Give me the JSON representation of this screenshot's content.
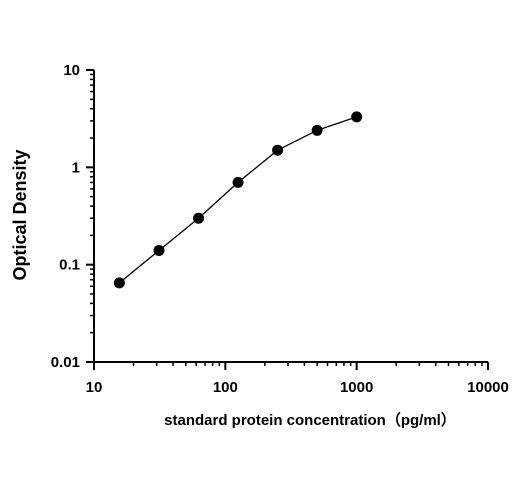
{
  "chart_data": {
    "type": "scatter",
    "title": "",
    "xlabel": "standard protein concentration（pg/ml）",
    "ylabel": "Optical Density",
    "xscale": "log",
    "yscale": "log",
    "xlim": [
      10,
      10000
    ],
    "ylim": [
      0.01,
      10
    ],
    "x_ticks": [
      10,
      100,
      1000,
      10000
    ],
    "x_tick_labels": [
      "10",
      "100",
      "1000",
      "10000"
    ],
    "y_ticks": [
      0.01,
      0.1,
      1,
      10
    ],
    "y_tick_labels": [
      "0.01",
      "0.1",
      "1",
      "10"
    ],
    "grid": false,
    "legend": "none",
    "series": [
      {
        "x": [
          15.6,
          31.25,
          62.5,
          125,
          250,
          500,
          1000
        ],
        "y": [
          0.065,
          0.14,
          0.3,
          0.7,
          1.5,
          2.4,
          3.3
        ]
      }
    ],
    "colors": {
      "marker": "#000000",
      "line": "#000000",
      "axis": "#000000"
    }
  }
}
